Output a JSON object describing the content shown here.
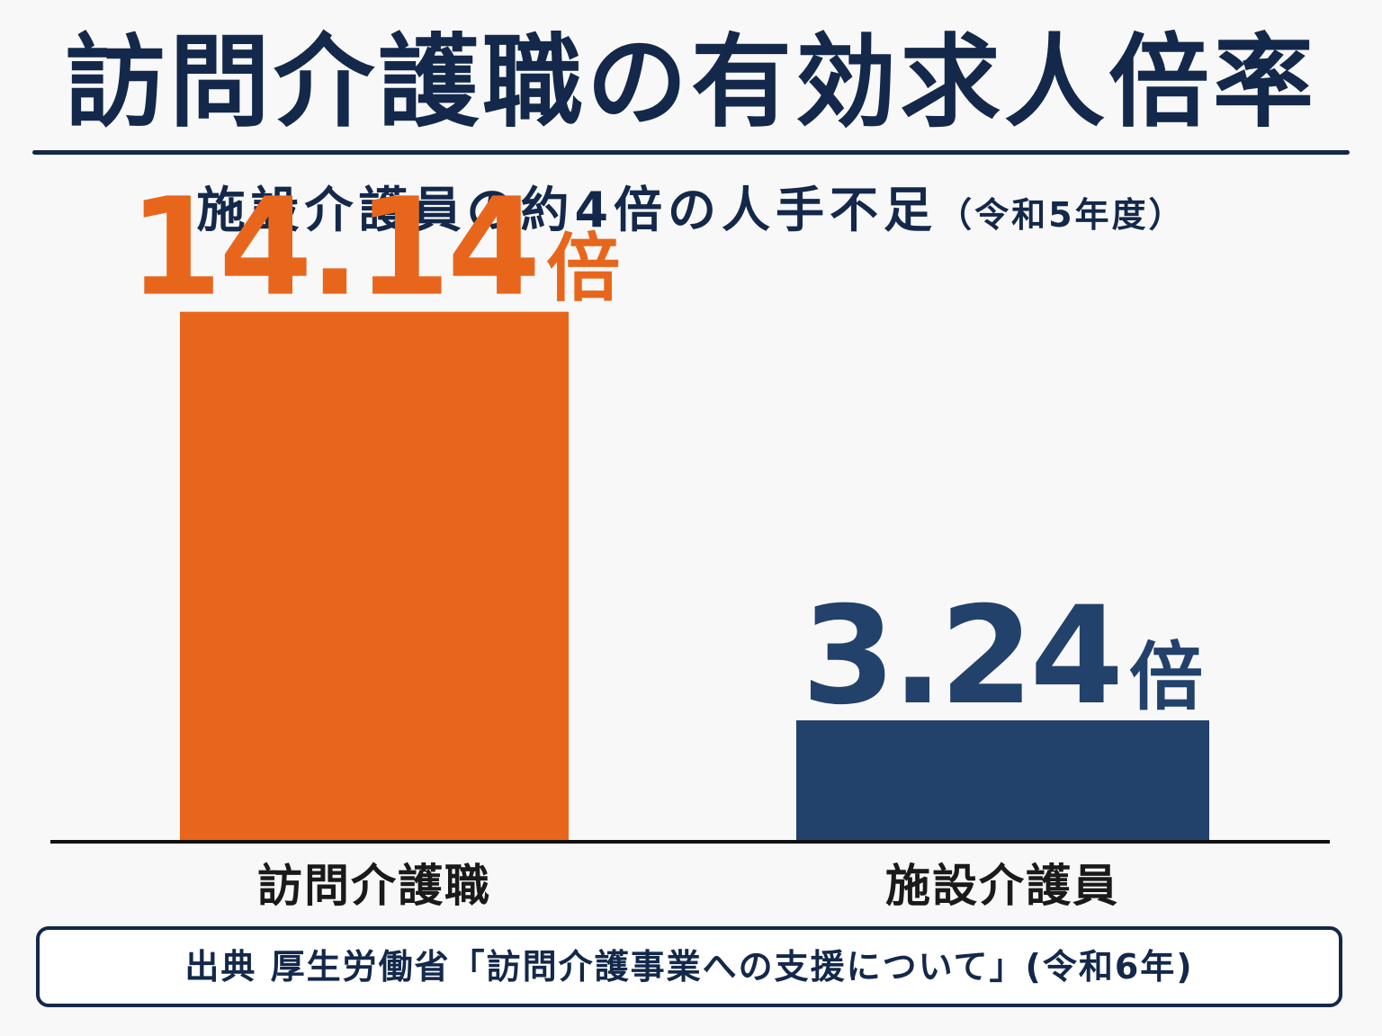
{
  "chart_data": {
    "type": "bar",
    "title": "訪問介護職の有効求人倍率",
    "subtitle": "施設介護員の約4倍の人手不足",
    "subtitle_note": "（令和5年度）",
    "categories": [
      "訪問介護職",
      "施設介護員"
    ],
    "values": [
      14.14,
      3.24
    ],
    "value_labels": [
      "14.14",
      "3.24"
    ],
    "unit": "倍",
    "colors": [
      "#e8661c",
      "#22416b"
    ],
    "ylim": [
      0,
      15.5
    ],
    "xlabel": "",
    "ylabel": "",
    "grid": false,
    "legend": "none"
  },
  "source": "出典 厚生労働省「訪問介護事業への支援について」(令和6年)"
}
